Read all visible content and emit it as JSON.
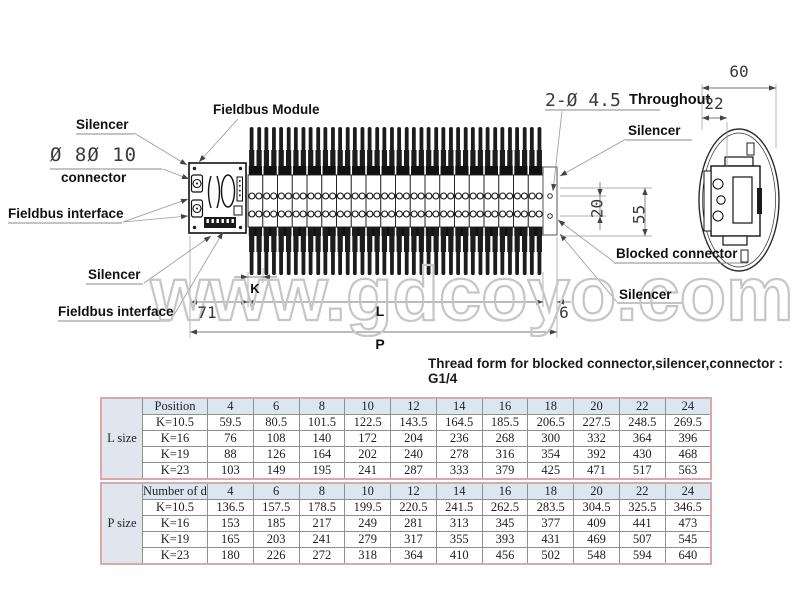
{
  "watermark": "www.gdcoyo.com",
  "thread_note": "Thread form for blocked connector,silencer,connector : G1/4",
  "labels": {
    "fieldbus_module": "Fieldbus Module",
    "silencer_top_left": "Silencer",
    "connector_dia": "Ø 8Ø 10",
    "connector": "connector",
    "fieldbus_interface_top": "Fieldbus interface",
    "silencer_bottom_left": "Silencer",
    "fieldbus_interface_bottom": "Fieldbus interface",
    "through_holes": "2-Ø 4.5",
    "throughout": "Throughout",
    "silencer_right_top": "Silencer",
    "blocked_connector": "Blocked connector",
    "silencer_right_bottom": "Silencer"
  },
  "dimensions": {
    "d60": "60",
    "d22": "22",
    "d20": "20",
    "d55": "55",
    "d71": "71",
    "dK": "K",
    "dL": "L",
    "d6": "6",
    "dP": "P"
  },
  "tables": [
    {
      "name": "l-size",
      "size_label": "L size",
      "header_label": "Position",
      "columns": [
        "4",
        "6",
        "8",
        "10",
        "12",
        "14",
        "16",
        "18",
        "20",
        "22",
        "24"
      ],
      "rows": [
        {
          "label": "K=10.5",
          "values": [
            "59.5",
            "80.5",
            "101.5",
            "122.5",
            "143.5",
            "164.5",
            "185.5",
            "206.5",
            "227.5",
            "248.5",
            "269.5"
          ]
        },
        {
          "label": "K=16",
          "values": [
            "76",
            "108",
            "140",
            "172",
            "204",
            "236",
            "268",
            "300",
            "332",
            "364",
            "396"
          ]
        },
        {
          "label": "K=19",
          "values": [
            "88",
            "126",
            "164",
            "202",
            "240",
            "278",
            "316",
            "354",
            "392",
            "430",
            "468"
          ]
        },
        {
          "label": "K=23",
          "values": [
            "103",
            "149",
            "195",
            "241",
            "287",
            "333",
            "379",
            "425",
            "471",
            "517",
            "563"
          ]
        }
      ]
    },
    {
      "name": "p-size",
      "size_label": "P size",
      "header_label": "Number of digits",
      "columns": [
        "4",
        "6",
        "8",
        "10",
        "12",
        "14",
        "16",
        "18",
        "20",
        "22",
        "24"
      ],
      "rows": [
        {
          "label": "K=10.5",
          "values": [
            "136.5",
            "157.5",
            "178.5",
            "199.5",
            "220.5",
            "241.5",
            "262.5",
            "283.5",
            "304.5",
            "325.5",
            "346.5"
          ]
        },
        {
          "label": "K=16",
          "values": [
            "153",
            "185",
            "217",
            "249",
            "281",
            "313",
            "345",
            "377",
            "409",
            "441",
            "473"
          ]
        },
        {
          "label": "K=19",
          "values": [
            "165",
            "203",
            "241",
            "279",
            "317",
            "355",
            "393",
            "431",
            "469",
            "507",
            "545"
          ]
        },
        {
          "label": "K=23",
          "values": [
            "180",
            "226",
            "272",
            "318",
            "364",
            "410",
            "456",
            "502",
            "548",
            "594",
            "640"
          ]
        }
      ]
    }
  ]
}
